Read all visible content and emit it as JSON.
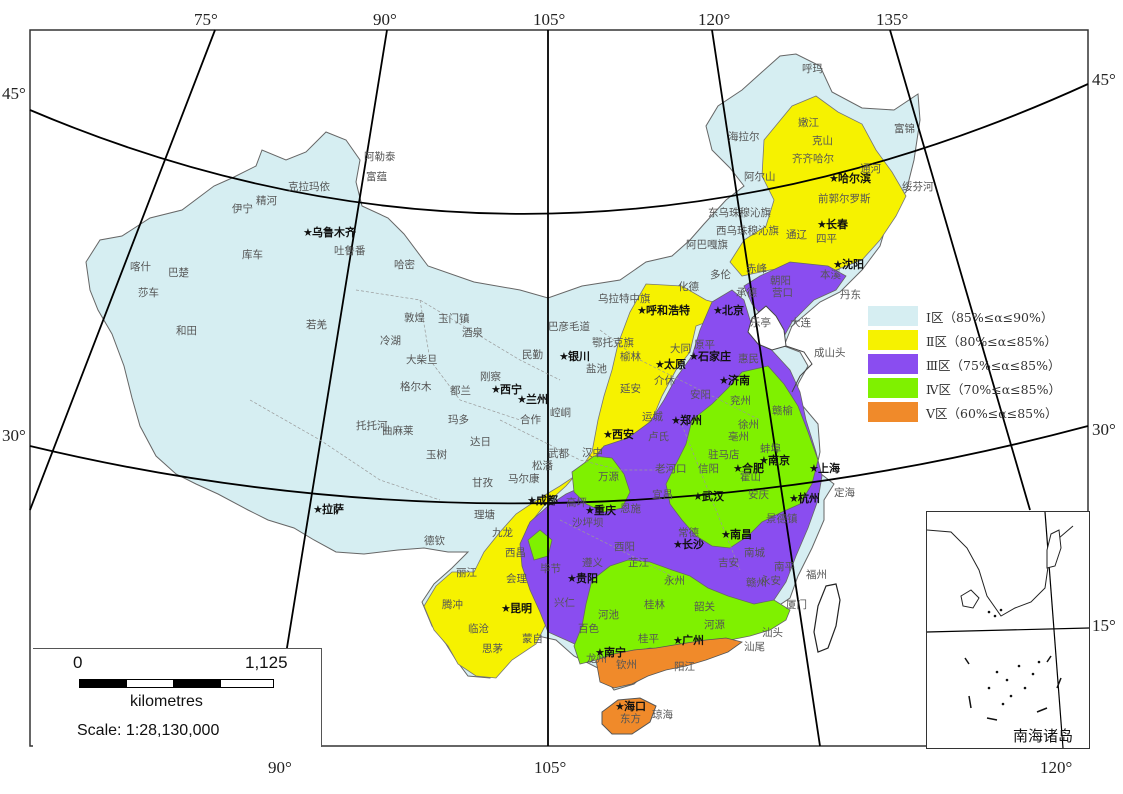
{
  "map": {
    "top_lon_labels": [
      "75°",
      "90°",
      "105°",
      "120°",
      "135°"
    ],
    "bottom_lon_labels": [
      "90°",
      "105°",
      "120°"
    ],
    "left_lat_labels": [
      "45°",
      "30°"
    ],
    "right_lat_labels": [
      "45°",
      "30°",
      "15°"
    ]
  },
  "legend": {
    "items": [
      {
        "label": "Ⅰ区（85%≤α≤90%）",
        "color": "#d6eef2"
      },
      {
        "label": "Ⅱ区（80%≤α≤85%）",
        "color": "#f6f200"
      },
      {
        "label": "Ⅲ区（75%≤α≤85%）",
        "color": "#8a4df0"
      },
      {
        "label": "Ⅳ区（70%≤α≤85%）",
        "color": "#7ff100"
      },
      {
        "label": "Ⅴ区（60%≤α≤85%）",
        "color": "#f08a2a"
      }
    ]
  },
  "scale": {
    "min_label": "0",
    "max_label": "1,125",
    "unit": "kilometres",
    "ratio_text": "Scale: 1:28,130,000"
  },
  "inset": {
    "title": "南海诸岛"
  },
  "cities": [
    {
      "name": "呼玛",
      "capital": false
    },
    {
      "name": "嫩江",
      "capital": false
    },
    {
      "name": "克山",
      "capital": false
    },
    {
      "name": "海拉尔",
      "capital": false
    },
    {
      "name": "齐齐哈尔",
      "capital": false
    },
    {
      "name": "富锦",
      "capital": false
    },
    {
      "name": "通河",
      "capital": false
    },
    {
      "name": "哈尔滨",
      "capital": true
    },
    {
      "name": "阿尔山",
      "capital": false
    },
    {
      "name": "前郭尔罗斯",
      "capital": false
    },
    {
      "name": "绥芬河",
      "capital": false
    },
    {
      "name": "东乌珠穆沁旗",
      "capital": false
    },
    {
      "name": "长春",
      "capital": true
    },
    {
      "name": "西乌珠穆沁旗",
      "capital": false
    },
    {
      "name": "通辽",
      "capital": false
    },
    {
      "name": "四平",
      "capital": false
    },
    {
      "name": "阿巴嘎旗",
      "capital": false
    },
    {
      "name": "赤峰",
      "capital": false
    },
    {
      "name": "沈阳",
      "capital": true
    },
    {
      "name": "化德",
      "capital": false
    },
    {
      "name": "多伦",
      "capital": false
    },
    {
      "name": "朝阳",
      "capital": false
    },
    {
      "name": "本溪",
      "capital": false
    },
    {
      "name": "丹东",
      "capital": false
    },
    {
      "name": "承德",
      "capital": false
    },
    {
      "name": "营口",
      "capital": false
    },
    {
      "name": "大连",
      "capital": false
    },
    {
      "name": "乌拉特中旗",
      "capital": false
    },
    {
      "name": "呼和浩特",
      "capital": true
    },
    {
      "name": "北京",
      "capital": true
    },
    {
      "name": "乐亭",
      "capital": false
    },
    {
      "name": "成山头",
      "capital": false
    },
    {
      "name": "巴彦毛道",
      "capital": false
    },
    {
      "name": "鄂托克旗",
      "capital": false
    },
    {
      "name": "大同",
      "capital": false
    },
    {
      "name": "原平",
      "capital": false
    },
    {
      "name": "石家庄",
      "capital": true
    },
    {
      "name": "惠民",
      "capital": false
    },
    {
      "name": "银川",
      "capital": true
    },
    {
      "name": "榆林",
      "capital": false
    },
    {
      "name": "盐池",
      "capital": false
    },
    {
      "name": "太原",
      "capital": true
    },
    {
      "name": "济南",
      "capital": true
    },
    {
      "name": "介休",
      "capital": false
    },
    {
      "name": "延安",
      "capital": false
    },
    {
      "name": "安阳",
      "capital": false
    },
    {
      "name": "兖州",
      "capital": false
    },
    {
      "name": "赣榆",
      "capital": false
    },
    {
      "name": "崆峒",
      "capital": false
    },
    {
      "name": "运城",
      "capital": false
    },
    {
      "name": "郑州",
      "capital": true
    },
    {
      "name": "徐州",
      "capital": false
    },
    {
      "name": "西安",
      "capital": true
    },
    {
      "name": "卢氏",
      "capital": false
    },
    {
      "name": "亳州",
      "capital": false
    },
    {
      "name": "蚌埠",
      "capital": false
    },
    {
      "name": "汉中",
      "capital": false
    },
    {
      "name": "驻马店",
      "capital": false
    },
    {
      "name": "合肥",
      "capital": true
    },
    {
      "name": "南京",
      "capital": true
    },
    {
      "name": "老河口",
      "capital": false
    },
    {
      "name": "信阳",
      "capital": false
    },
    {
      "name": "上海",
      "capital": true
    },
    {
      "name": "万源",
      "capital": false
    },
    {
      "name": "霍山",
      "capital": false
    },
    {
      "name": "宜昌",
      "capital": false
    },
    {
      "name": "武汉",
      "capital": true
    },
    {
      "name": "安庆",
      "capital": false
    },
    {
      "name": "杭州",
      "capital": true
    },
    {
      "name": "定海",
      "capital": false
    },
    {
      "name": "成都",
      "capital": true
    },
    {
      "name": "高坪",
      "capital": false
    },
    {
      "name": "恩施",
      "capital": false
    },
    {
      "name": "重庆",
      "capital": true
    },
    {
      "name": "景德镇",
      "capital": false
    },
    {
      "name": "沙坪坝",
      "capital": false
    },
    {
      "name": "常德",
      "capital": false
    },
    {
      "name": "南昌",
      "capital": true
    },
    {
      "name": "长沙",
      "capital": true
    },
    {
      "name": "酉阳",
      "capital": false
    },
    {
      "name": "南城",
      "capital": false
    },
    {
      "name": "遵义",
      "capital": false
    },
    {
      "name": "芷江",
      "capital": false
    },
    {
      "name": "吉安",
      "capital": false
    },
    {
      "name": "南平",
      "capital": false
    },
    {
      "name": "福州",
      "capital": false
    },
    {
      "name": "毕节",
      "capital": false
    },
    {
      "name": "贵阳",
      "capital": true
    },
    {
      "name": "永州",
      "capital": false
    },
    {
      "name": "赣州",
      "capital": false
    },
    {
      "name": "永安",
      "capital": false
    },
    {
      "name": "兴仁",
      "capital": false
    },
    {
      "name": "桂林",
      "capital": false
    },
    {
      "name": "厦门",
      "capital": false
    },
    {
      "name": "河池",
      "capital": false
    },
    {
      "name": "韶关",
      "capital": false
    },
    {
      "name": "汕头",
      "capital": false
    },
    {
      "name": "百色",
      "capital": false
    },
    {
      "name": "河源",
      "capital": false
    },
    {
      "name": "桂平",
      "capital": false
    },
    {
      "name": "广州",
      "capital": true
    },
    {
      "name": "汕尾",
      "capital": false
    },
    {
      "name": "龙州",
      "capital": false
    },
    {
      "name": "南宁",
      "capital": true
    },
    {
      "name": "钦州",
      "capital": false
    },
    {
      "name": "阳江",
      "capital": false
    },
    {
      "name": "海口",
      "capital": true
    },
    {
      "name": "东方",
      "capital": false
    },
    {
      "name": "琼海",
      "capital": false
    },
    {
      "name": "阿勒泰",
      "capital": false
    },
    {
      "name": "富蕴",
      "capital": false
    },
    {
      "name": "克拉玛依",
      "capital": false
    },
    {
      "name": "伊宁",
      "capital": false
    },
    {
      "name": "精河",
      "capital": false
    },
    {
      "name": "乌鲁木齐",
      "capital": true
    },
    {
      "name": "吐鲁番",
      "capital": false
    },
    {
      "name": "喀什",
      "capital": false
    },
    {
      "name": "巴楚",
      "capital": false
    },
    {
      "name": "库车",
      "capital": false
    },
    {
      "name": "哈密",
      "capital": false
    },
    {
      "name": "莎车",
      "capital": false
    },
    {
      "name": "和田",
      "capital": false
    },
    {
      "name": "若羌",
      "capital": false
    },
    {
      "name": "敦煌",
      "capital": false
    },
    {
      "name": "玉门镇",
      "capital": false
    },
    {
      "name": "酒泉",
      "capital": false
    },
    {
      "name": "冷湖",
      "capital": false
    },
    {
      "name": "民勤",
      "capital": false
    },
    {
      "name": "大柴旦",
      "capital": false
    },
    {
      "name": "格尔木",
      "capital": false
    },
    {
      "name": "都兰",
      "capital": false
    },
    {
      "name": "刚察",
      "capital": false
    },
    {
      "name": "西宁",
      "capital": true
    },
    {
      "name": "兰州",
      "capital": true
    },
    {
      "name": "玛多",
      "capital": false
    },
    {
      "name": "合作",
      "capital": false
    },
    {
      "name": "托托河",
      "capital": false
    },
    {
      "name": "曲麻莱",
      "capital": false
    },
    {
      "name": "达日",
      "capital": false
    },
    {
      "name": "武都",
      "capital": false
    },
    {
      "name": "玉树",
      "capital": false
    },
    {
      "name": "松潘",
      "capital": false
    },
    {
      "name": "马尔康",
      "capital": false
    },
    {
      "name": "甘孜",
      "capital": false
    },
    {
      "name": "拉萨",
      "capital": true
    },
    {
      "name": "理塘",
      "capital": false
    },
    {
      "name": "九龙",
      "capital": false
    },
    {
      "name": "德钦",
      "capital": false
    },
    {
      "name": "西昌",
      "capital": false
    },
    {
      "name": "丽江",
      "capital": false
    },
    {
      "name": "会理",
      "capital": false
    },
    {
      "name": "腾冲",
      "capital": false
    },
    {
      "name": "昆明",
      "capital": true
    },
    {
      "name": "临沧",
      "capital": false
    },
    {
      "name": "蒙自",
      "capital": false
    },
    {
      "name": "思茅",
      "capital": false
    }
  ]
}
